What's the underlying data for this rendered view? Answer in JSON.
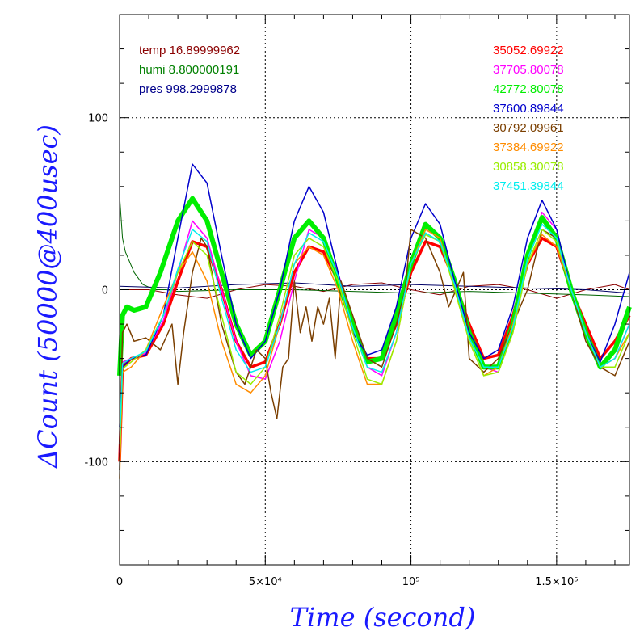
{
  "chart_data": {
    "type": "line",
    "xlabel": "Time (second)",
    "ylabel": "ΔCount (50000@400usec)",
    "xlim": [
      0,
      175000
    ],
    "ylim": [
      -160,
      160
    ],
    "x_ticks": [
      {
        "value": 0,
        "label": "0"
      },
      {
        "value": 50000,
        "label": "5×10⁴"
      },
      {
        "value": 100000,
        "label": "10⁵"
      },
      {
        "value": 150000,
        "label": "1.5×10⁵"
      }
    ],
    "y_ticks": [
      {
        "value": 100,
        "label": "100"
      },
      {
        "value": 0,
        "label": "0"
      },
      {
        "value": -100,
        "label": "-100"
      }
    ],
    "grid": true,
    "env_legend": [
      {
        "label": "temp 16.89999962",
        "color": "#8b0000"
      },
      {
        "label": "humi 8.800000191",
        "color": "#008000"
      },
      {
        "label": "pres 998.2999878",
        "color": "#00008b"
      }
    ],
    "legend_position": "top-right",
    "series": [
      {
        "name": "35052.69922",
        "color": "#ff0000",
        "width": 3.5,
        "x": [
          0,
          1000,
          4000,
          9000,
          15000,
          20000,
          25000,
          30000,
          35000,
          40000,
          45000,
          50000,
          55000,
          60000,
          65000,
          70000,
          75000,
          80000,
          85000,
          90000,
          95000,
          100000,
          105000,
          110000,
          115000,
          120000,
          125000,
          130000,
          135000,
          140000,
          145000,
          150000,
          155000,
          160000,
          165000,
          170000,
          175000
        ],
        "y": [
          -100,
          -45,
          -40,
          -38,
          -20,
          5,
          28,
          25,
          0,
          -30,
          -45,
          -42,
          -20,
          10,
          25,
          22,
          5,
          -20,
          -40,
          -40,
          -20,
          10,
          28,
          25,
          5,
          -20,
          -40,
          -38,
          -15,
          15,
          30,
          25,
          0,
          -20,
          -40,
          -30,
          -15
        ]
      },
      {
        "name": "37705.80078",
        "color": "#ff00ff",
        "width": 1.5,
        "x": [
          0,
          1000,
          4000,
          9000,
          15000,
          20000,
          25000,
          30000,
          35000,
          40000,
          45000,
          50000,
          55000,
          60000,
          65000,
          70000,
          75000,
          80000,
          85000,
          90000,
          95000,
          100000,
          105000,
          110000,
          115000,
          120000,
          125000,
          130000,
          135000,
          140000,
          145000,
          150000,
          155000,
          160000,
          165000,
          170000,
          175000
        ],
        "y": [
          -95,
          -42,
          -40,
          -37,
          -18,
          10,
          40,
          30,
          0,
          -30,
          -50,
          -52,
          -30,
          5,
          35,
          30,
          10,
          -20,
          -45,
          -50,
          -25,
          15,
          35,
          30,
          5,
          -25,
          -45,
          -48,
          -25,
          20,
          45,
          35,
          0,
          -25,
          -45,
          -40,
          -20
        ]
      },
      {
        "name": "42772.80078",
        "color": "#00ee00",
        "width": 6,
        "x": [
          0,
          1000,
          2500,
          5000,
          9000,
          14000,
          20000,
          25000,
          30000,
          35000,
          40000,
          45000,
          50000,
          55000,
          60000,
          65000,
          70000,
          75000,
          80000,
          85000,
          90000,
          95000,
          100000,
          105000,
          110000,
          115000,
          120000,
          125000,
          130000,
          135000,
          140000,
          145000,
          150000,
          155000,
          160000,
          165000,
          170000,
          175000
        ],
        "y": [
          -50,
          -15,
          -10,
          -12,
          -10,
          10,
          40,
          53,
          40,
          10,
          -20,
          -38,
          -30,
          0,
          30,
          40,
          30,
          5,
          -20,
          -42,
          -40,
          -15,
          15,
          38,
          30,
          5,
          -25,
          -45,
          -45,
          -20,
          20,
          42,
          30,
          0,
          -25,
          -45,
          -35,
          -10
        ]
      },
      {
        "name": "37600.89844",
        "color": "#0000cc",
        "width": 1.5,
        "x": [
          0,
          1000,
          4000,
          9000,
          15000,
          20000,
          25000,
          30000,
          35000,
          40000,
          45000,
          50000,
          55000,
          60000,
          65000,
          70000,
          75000,
          80000,
          85000,
          90000,
          95000,
          100000,
          105000,
          110000,
          115000,
          120000,
          125000,
          130000,
          135000,
          140000,
          145000,
          150000,
          155000,
          160000,
          165000,
          170000,
          175000
        ],
        "y": [
          -80,
          -45,
          -40,
          -38,
          -15,
          30,
          73,
          62,
          20,
          -20,
          -40,
          -30,
          0,
          40,
          60,
          45,
          10,
          -25,
          -38,
          -35,
          -10,
          30,
          50,
          38,
          5,
          -25,
          -40,
          -35,
          -10,
          30,
          52,
          35,
          0,
          -25,
          -42,
          -20,
          10
        ]
      },
      {
        "name": "30792.09961",
        "color": "#7b3f00",
        "width": 1.5,
        "x": [
          0,
          1000,
          2500,
          5000,
          9000,
          14000,
          18000,
          20000,
          22000,
          25000,
          28000,
          30000,
          35000,
          40000,
          43000,
          47000,
          50000,
          52000,
          54000,
          56000,
          58000,
          60000,
          62000,
          64000,
          66000,
          68000,
          70000,
          72000,
          74000,
          76000,
          80000,
          85000,
          90000,
          95000,
          98000,
          100000,
          105000,
          110000,
          113000,
          118000,
          120000,
          125000,
          130000,
          135000,
          140000,
          145000,
          150000,
          155000,
          160000,
          165000,
          170000,
          175000
        ],
        "y": [
          -105,
          -25,
          -20,
          -30,
          -28,
          -35,
          -20,
          -55,
          -25,
          10,
          30,
          25,
          -20,
          -48,
          -55,
          -35,
          -40,
          -60,
          -75,
          -45,
          -40,
          5,
          -25,
          -10,
          -30,
          -10,
          -20,
          -5,
          -40,
          5,
          -15,
          -40,
          -45,
          -20,
          0,
          35,
          30,
          10,
          -10,
          10,
          -40,
          -48,
          -40,
          -20,
          0,
          35,
          30,
          0,
          -30,
          -45,
          -50,
          -30
        ]
      },
      {
        "name": "37384.69922",
        "color": "#ff8c00",
        "width": 1.5,
        "x": [
          0,
          1000,
          4000,
          9000,
          15000,
          20000,
          25000,
          30000,
          35000,
          40000,
          45000,
          50000,
          55000,
          60000,
          65000,
          70000,
          75000,
          80000,
          85000,
          90000,
          95000,
          100000,
          105000,
          110000,
          115000,
          120000,
          125000,
          130000,
          135000,
          140000,
          145000,
          150000,
          155000,
          160000,
          165000,
          170000,
          175000
        ],
        "y": [
          -110,
          -48,
          -45,
          -35,
          -10,
          10,
          22,
          5,
          -30,
          -55,
          -60,
          -50,
          -20,
          15,
          25,
          20,
          0,
          -30,
          -55,
          -55,
          -30,
          15,
          35,
          30,
          0,
          -30,
          -50,
          -45,
          -20,
          15,
          32,
          25,
          0,
          -25,
          -45,
          -40,
          -25
        ]
      },
      {
        "name": "30858.30078",
        "color": "#99ee00",
        "width": 1.5,
        "x": [
          0,
          1000,
          4000,
          9000,
          15000,
          20000,
          25000,
          30000,
          35000,
          40000,
          45000,
          50000,
          55000,
          60000,
          65000,
          70000,
          75000,
          80000,
          85000,
          90000,
          95000,
          100000,
          105000,
          110000,
          115000,
          120000,
          125000,
          130000,
          135000,
          140000,
          145000,
          150000,
          155000,
          160000,
          165000,
          170000,
          175000
        ],
        "y": [
          -100,
          -46,
          -42,
          -35,
          -15,
          10,
          28,
          20,
          -15,
          -48,
          -55,
          -45,
          -15,
          20,
          30,
          25,
          5,
          -25,
          -52,
          -55,
          -30,
          15,
          32,
          28,
          0,
          -30,
          -50,
          -48,
          -25,
          15,
          35,
          28,
          0,
          -25,
          -45,
          -45,
          -25
        ]
      },
      {
        "name": "37451.39844",
        "color": "#00eeee",
        "width": 1.5,
        "x": [
          0,
          1000,
          4000,
          9000,
          15000,
          20000,
          25000,
          30000,
          35000,
          40000,
          45000,
          50000,
          55000,
          60000,
          65000,
          70000,
          75000,
          80000,
          85000,
          90000,
          95000,
          100000,
          105000,
          110000,
          115000,
          120000,
          125000,
          130000,
          135000,
          140000,
          145000,
          150000,
          155000,
          160000,
          165000,
          170000,
          175000
        ],
        "y": [
          -90,
          -43,
          -40,
          -36,
          -15,
          12,
          35,
          28,
          -5,
          -35,
          -48,
          -45,
          -20,
          15,
          33,
          28,
          8,
          -22,
          -45,
          -48,
          -25,
          15,
          33,
          28,
          3,
          -28,
          -45,
          -45,
          -22,
          18,
          38,
          30,
          0,
          -25,
          -45,
          -40,
          -20
        ]
      },
      {
        "name": "temp",
        "color": "#8b0000",
        "width": 1,
        "legend": false,
        "x": [
          0,
          10000,
          20000,
          30000,
          40000,
          50000,
          60000,
          70000,
          80000,
          90000,
          100000,
          110000,
          120000,
          130000,
          140000,
          150000,
          160000,
          170000,
          175000
        ],
        "y": [
          0,
          0,
          -3,
          -5,
          0,
          3,
          2,
          -1,
          3,
          4,
          0,
          -3,
          2,
          3,
          0,
          -5,
          0,
          3,
          0
        ]
      },
      {
        "name": "humi",
        "color": "#006400",
        "width": 1,
        "legend": false,
        "x": [
          0,
          1000,
          2000,
          3000,
          5000,
          8000,
          12000,
          16000,
          20000,
          40000,
          60000,
          80000,
          100000,
          120000,
          140000,
          160000,
          175000
        ],
        "y": [
          55,
          30,
          22,
          18,
          10,
          3,
          0,
          0,
          -1,
          0,
          0,
          -1,
          -2,
          -1,
          -2,
          -3,
          -4
        ]
      },
      {
        "name": "pres",
        "color": "#000066",
        "width": 1,
        "legend": false,
        "x": [
          0,
          20000,
          40000,
          60000,
          80000,
          100000,
          120000,
          140000,
          160000,
          175000
        ],
        "y": [
          2,
          1,
          3,
          4,
          2,
          3,
          2,
          1,
          0,
          -2
        ]
      }
    ]
  }
}
